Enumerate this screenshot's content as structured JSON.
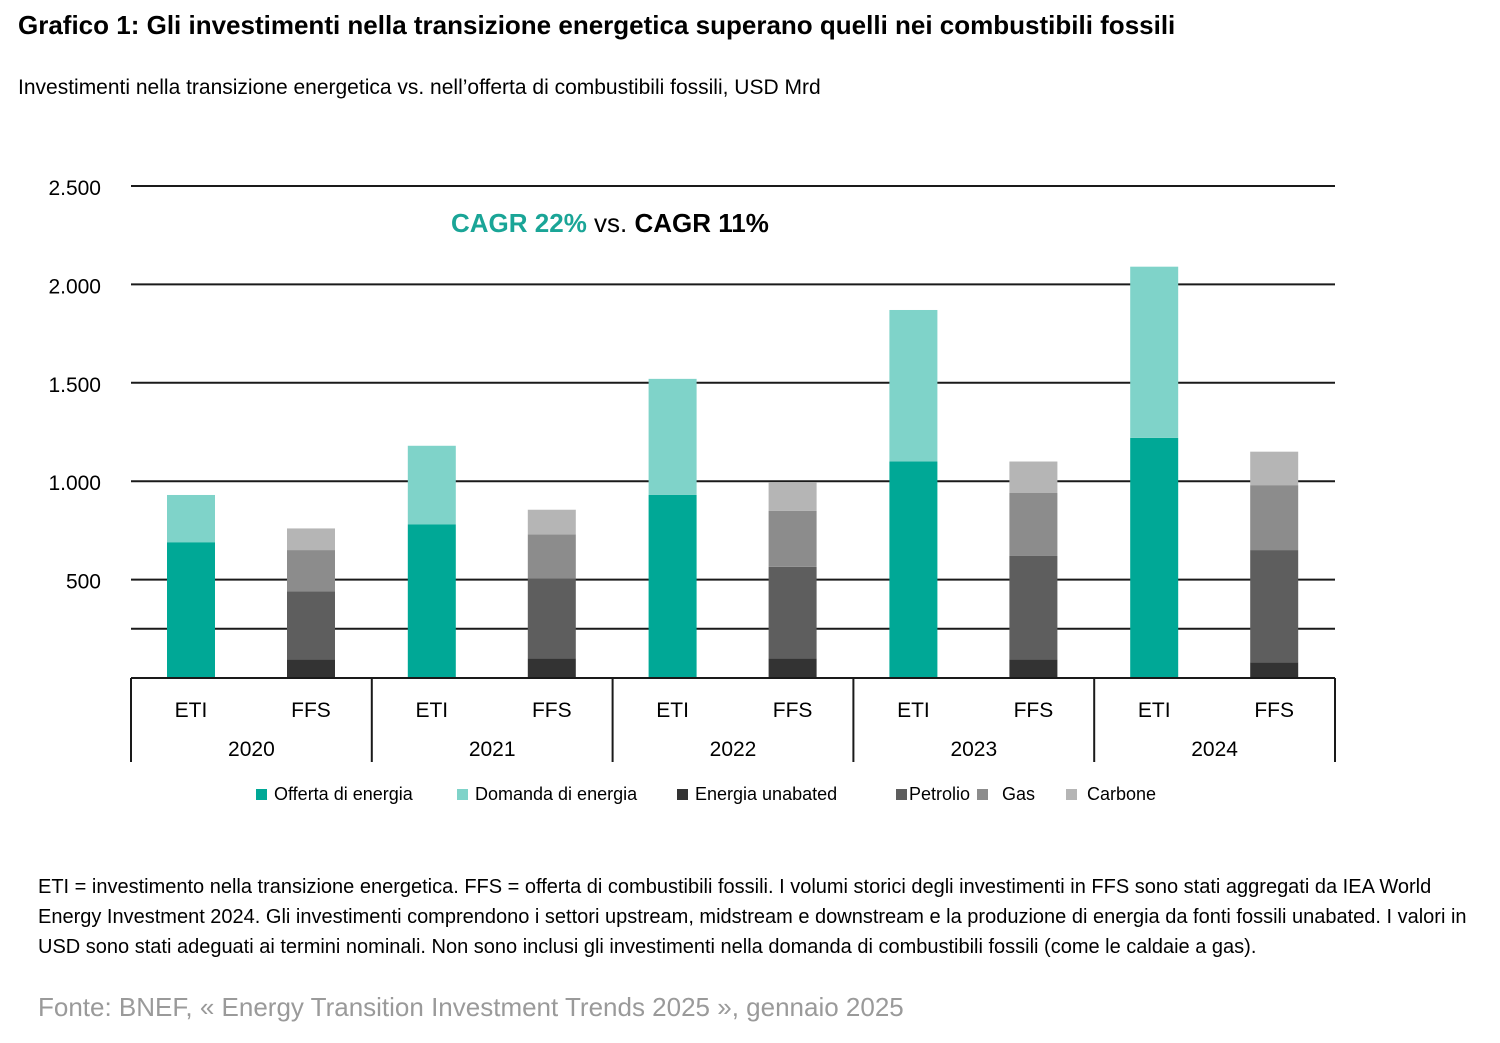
{
  "title": "Grafico 1: Gli investimenti nella transizione energetica superano quelli nei combustibili fossili",
  "subtitle": "Investimenti nella transizione energetica vs. nell’offerta di combustibili fossili, USD Mrd",
  "annotation": {
    "cagr_eti": "CAGR 22%",
    "vs": " vs. ",
    "cagr_ffs": "CAGR 11%"
  },
  "footnote": "ETI = investimento nella transizione energetica. FFS = offerta di combustibili fossili. I volumi storici degli investimenti in FFS sono stati aggregati da IEA World Energy Investment 2024. Gli investimenti comprendono i settori upstream, midstream e downstream e la produzione di energia da fonti fossili unabated. I valori in USD sono stati adeguati ai termini nominali. Non sono inclusi gli investimenti nella domanda di combustibili fossili (come le caldaie a gas).",
  "source": "Fonte: BNEF, « Energy Transition Investment Trends 2025 », gennaio 2025",
  "legend": [
    {
      "label": "Offerta di energia",
      "color": "#00a896"
    },
    {
      "label": "Domanda di energia",
      "color": "#7fd3c9"
    },
    {
      "label": "Energia unabated",
      "color": "#333333"
    },
    {
      "label": "Petrolio",
      "color": "#5e5e5e"
    },
    {
      "label": "Gas",
      "color": "#8c8c8c"
    },
    {
      "label": "Carbone",
      "color": "#b5b5b5"
    }
  ],
  "chart_data": {
    "type": "bar",
    "stacked": true,
    "years": [
      "2020",
      "2021",
      "2022",
      "2023",
      "2024"
    ],
    "groups": [
      "ETI",
      "FFS"
    ],
    "y_tick_labels": [
      "2.500",
      "2.000",
      "1.500",
      "1.000",
      "500"
    ],
    "ylim": [
      0,
      2500
    ],
    "grid": true,
    "legend_position": "bottom",
    "series": [
      {
        "name": "Offerta di energia",
        "group": "ETI",
        "color": "#00a896",
        "values": [
          690,
          780,
          930,
          1100,
          1220
        ]
      },
      {
        "name": "Domanda di energia",
        "group": "ETI",
        "color": "#7fd3c9",
        "values": [
          240,
          400,
          590,
          770,
          870
        ]
      },
      {
        "name": "Energia unabated",
        "group": "FFS",
        "color": "#333333",
        "values": [
          95,
          100,
          100,
          95,
          80
        ]
      },
      {
        "name": "Petrolio",
        "group": "FFS",
        "color": "#5e5e5e",
        "values": [
          345,
          405,
          465,
          525,
          570
        ]
      },
      {
        "name": "Gas",
        "group": "FFS",
        "color": "#8c8c8c",
        "values": [
          210,
          225,
          285,
          320,
          330
        ]
      },
      {
        "name": "Carbone",
        "group": "FFS",
        "color": "#b5b5b5",
        "values": [
          110,
          125,
          145,
          160,
          170
        ]
      }
    ]
  }
}
